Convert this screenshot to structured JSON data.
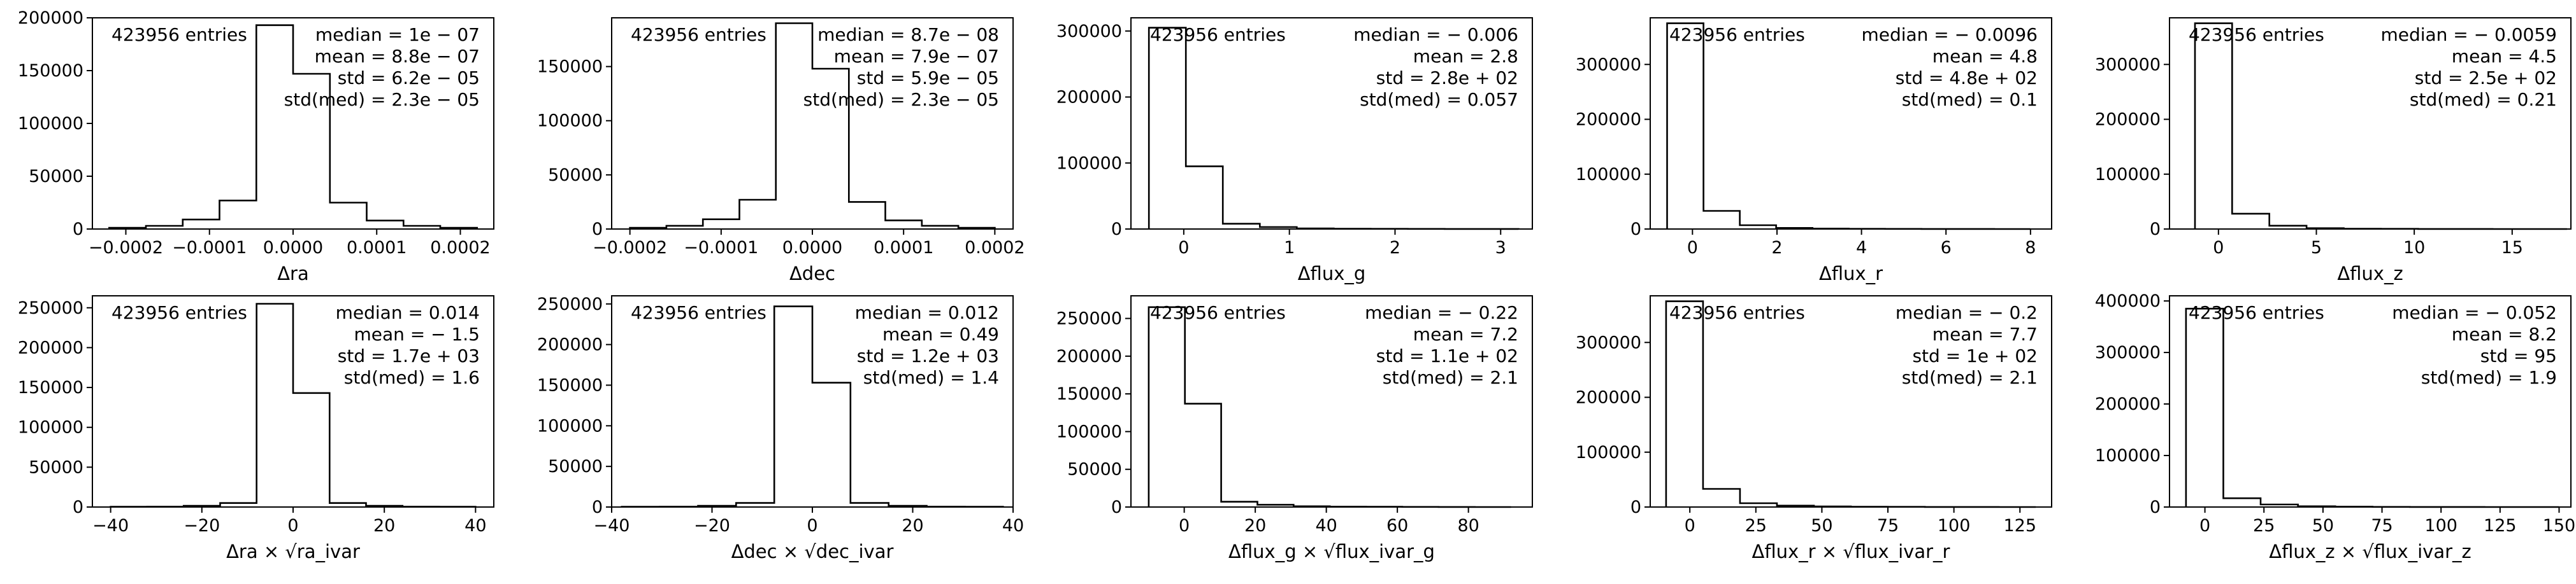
{
  "chart_data": [
    {
      "type": "histogram",
      "xlabel": "Δra",
      "entries": "423956 entries",
      "stats": [
        "median = 1e − 07",
        "mean = 8.8e − 07",
        "std = 6.2e − 05",
        "std(med) = 2.3e − 05"
      ],
      "xlim": [
        -0.00024,
        0.00024
      ],
      "ylim": [
        0,
        200000
      ],
      "xticks": [
        -0.0002,
        -0.0001,
        0.0,
        0.0001,
        0.0002
      ],
      "xtick_labels": [
        "−0.0002",
        "−0.0001",
        "0.0000",
        "0.0001",
        "0.0002"
      ],
      "yticks": [
        0,
        50000,
        100000,
        150000,
        200000
      ],
      "bin_edges": [
        -0.00022,
        -0.000176,
        -0.000132,
        -8.8e-05,
        -4.4e-05,
        0.0,
        4.4e-05,
        8.8e-05,
        0.000132,
        0.000176,
        0.00022
      ],
      "counts": [
        1200,
        3000,
        9000,
        27000,
        193000,
        147000,
        25000,
        8000,
        3000,
        1200
      ]
    },
    {
      "type": "histogram",
      "xlabel": "Δdec",
      "entries": "423956 entries",
      "stats": [
        "median = 8.7e − 08",
        "mean = 7.9e − 07",
        "std = 5.9e − 05",
        "std(med) = 2.3e − 05"
      ],
      "xlim": [
        -0.00022,
        0.00022
      ],
      "ylim": [
        0,
        195000
      ],
      "xticks": [
        -0.0002,
        -0.0001,
        0.0,
        0.0001,
        0.0002
      ],
      "xtick_labels": [
        "−0.0002",
        "−0.0001",
        "0.0000",
        "0.0001",
        "0.0002"
      ],
      "yticks": [
        0,
        50000,
        100000,
        150000
      ],
      "bin_edges": [
        -0.0002,
        -0.00016,
        -0.00012,
        -8e-05,
        -4e-05,
        0.0,
        4e-05,
        8e-05,
        0.00012,
        0.00016,
        0.0002
      ],
      "counts": [
        1200,
        3000,
        9000,
        27000,
        190000,
        148000,
        25000,
        8000,
        3000,
        1200
      ]
    },
    {
      "type": "histogram",
      "xlabel": "Δflux_g",
      "entries": "423956 entries",
      "stats": [
        "median = − 0.006",
        "mean = 2.8",
        "std = 2.8e + 02",
        "std(med) = 0.057"
      ],
      "xlim": [
        -0.5,
        3.3
      ],
      "ylim": [
        0,
        320000
      ],
      "xticks": [
        0,
        1,
        2,
        3
      ],
      "xtick_labels": [
        "0",
        "1",
        "2",
        "3"
      ],
      "yticks": [
        0,
        100000,
        200000,
        300000
      ],
      "bin_edges": [
        -0.33,
        0.02,
        0.37,
        0.72,
        1.07,
        1.42,
        1.77,
        2.12,
        2.47,
        2.82,
        3.17
      ],
      "counts": [
        305000,
        95000,
        8000,
        3000,
        1000,
        500,
        300,
        200,
        100,
        60
      ]
    },
    {
      "type": "histogram",
      "xlabel": "Δflux_r",
      "entries": "423956 entries",
      "stats": [
        "median = − 0.0096",
        "mean = 4.8",
        "std = 4.8e + 02",
        "std(med) = 0.1"
      ],
      "xlim": [
        -1.0,
        8.5
      ],
      "ylim": [
        0,
        385000
      ],
      "xticks": [
        0,
        2,
        4,
        6,
        8
      ],
      "xtick_labels": [
        "0",
        "2",
        "4",
        "6",
        "8"
      ],
      "yticks": [
        0,
        100000,
        200000,
        300000
      ],
      "bin_edges": [
        -0.6,
        0.26,
        1.12,
        1.98,
        2.84,
        3.7,
        4.56,
        5.42,
        6.28,
        7.14,
        8.0
      ],
      "counts": [
        375000,
        33000,
        7000,
        2000,
        800,
        400,
        200,
        100,
        60,
        30
      ]
    },
    {
      "type": "histogram",
      "xlabel": "Δflux_z",
      "entries": "423956 entries",
      "stats": [
        "median = − 0.0059",
        "mean = 4.5",
        "std = 2.5e + 02",
        "std(med) = 0.21"
      ],
      "xlim": [
        -2.5,
        18.0
      ],
      "ylim": [
        0,
        385000
      ],
      "xticks": [
        0,
        5,
        10,
        15
      ],
      "xtick_labels": [
        "0",
        "5",
        "10",
        "15"
      ],
      "yticks": [
        0,
        100000,
        200000,
        300000
      ],
      "bin_edges": [
        -1.2,
        0.7,
        2.6,
        4.5,
        6.4,
        8.3,
        10.2,
        12.1,
        14.0,
        15.9,
        17.8
      ],
      "counts": [
        375000,
        28000,
        6000,
        1500,
        600,
        300,
        150,
        80,
        40,
        20
      ]
    },
    {
      "type": "histogram",
      "xlabel": "Δra × √ra_ivar",
      "entries": "423956 entries",
      "stats": [
        "median = 0.014",
        "mean = − 1.5",
        "std = 1.7e + 03",
        "std(med) = 1.6"
      ],
      "xlim": [
        -44,
        44
      ],
      "ylim": [
        0,
        265000
      ],
      "xticks": [
        -40,
        -20,
        0,
        20,
        40
      ],
      "xtick_labels": [
        "−40",
        "−20",
        "0",
        "20",
        "40"
      ],
      "yticks": [
        0,
        50000,
        100000,
        150000,
        200000,
        250000
      ],
      "bin_edges": [
        -40,
        -32,
        -24,
        -16,
        -8,
        0,
        8,
        16,
        24,
        32,
        40
      ],
      "counts": [
        300,
        500,
        1500,
        5000,
        255000,
        143000,
        5000,
        1500,
        500,
        300
      ]
    },
    {
      "type": "histogram",
      "xlabel": "Δdec × √dec_ivar",
      "entries": "423956 entries",
      "stats": [
        "median = 0.012",
        "mean = 0.49",
        "std = 1.2e + 03",
        "std(med) = 1.4"
      ],
      "xlim": [
        -40,
        40
      ],
      "ylim": [
        0,
        260000
      ],
      "xticks": [
        -40,
        -20,
        0,
        20,
        40
      ],
      "xtick_labels": [
        "−40",
        "−20",
        "0",
        "20",
        "40"
      ],
      "yticks": [
        0,
        50000,
        100000,
        150000,
        200000,
        250000
      ],
      "bin_edges": [
        -38,
        -30.4,
        -22.8,
        -15.2,
        -7.6,
        0,
        7.6,
        15.2,
        22.8,
        30.4,
        38
      ],
      "counts": [
        300,
        500,
        1500,
        5000,
        247000,
        153000,
        5000,
        1500,
        500,
        300
      ]
    },
    {
      "type": "histogram",
      "xlabel": "Δflux_g × √flux_ivar_g",
      "entries": "423956 entries",
      "stats": [
        "median = − 0.22",
        "mean = 7.2",
        "std = 1.1e + 02",
        "std(med) = 2.1"
      ],
      "xlim": [
        -15,
        98
      ],
      "ylim": [
        0,
        280000
      ],
      "xticks": [
        0,
        20,
        40,
        60,
        80
      ],
      "xtick_labels": [
        "0",
        "20",
        "40",
        "60",
        "80"
      ],
      "yticks": [
        0,
        50000,
        100000,
        150000,
        200000,
        250000
      ],
      "bin_edges": [
        -10,
        0.2,
        10.4,
        20.6,
        30.8,
        41.0,
        51.2,
        61.4,
        71.6,
        81.8,
        92.0
      ],
      "counts": [
        265000,
        137000,
        7000,
        3000,
        1000,
        500,
        300,
        150,
        80,
        40
      ]
    },
    {
      "type": "histogram",
      "xlabel": "Δflux_r × √flux_ivar_r",
      "entries": "423956 entries",
      "stats": [
        "median = − 0.2",
        "mean = 7.7",
        "std = 1e + 02",
        "std(med) = 2.1"
      ],
      "xlim": [
        -15,
        137
      ],
      "ylim": [
        0,
        385000
      ],
      "xticks": [
        0,
        25,
        50,
        75,
        100,
        125
      ],
      "xtick_labels": [
        "0",
        "25",
        "50",
        "75",
        "100",
        "125"
      ],
      "yticks": [
        0,
        100000,
        200000,
        300000
      ],
      "bin_edges": [
        -9,
        5,
        19,
        33,
        47,
        61,
        75,
        89,
        103,
        117,
        131
      ],
      "counts": [
        375000,
        33000,
        7000,
        2500,
        1000,
        500,
        300,
        150,
        80,
        40
      ]
    },
    {
      "type": "histogram",
      "xlabel": "Δflux_z × √flux_ivar_z",
      "entries": "423956 entries",
      "stats": [
        "median = − 0.052",
        "mean = 8.2",
        "std = 95",
        "std(med) = 1.9"
      ],
      "xlim": [
        -15,
        155
      ],
      "ylim": [
        0,
        410000
      ],
      "xticks": [
        0,
        25,
        50,
        75,
        100,
        125,
        150
      ],
      "xtick_labels": [
        "0",
        "25",
        "50",
        "75",
        "100",
        "125",
        "150"
      ],
      "yticks": [
        0,
        100000,
        200000,
        300000,
        400000
      ],
      "bin_edges": [
        -8,
        7.8,
        23.6,
        39.4,
        55.2,
        71.0,
        86.8,
        102.6,
        118.4,
        134.2,
        150.0
      ],
      "counts": [
        385000,
        17000,
        5000,
        1500,
        700,
        300,
        150,
        80,
        40,
        20
      ]
    }
  ]
}
